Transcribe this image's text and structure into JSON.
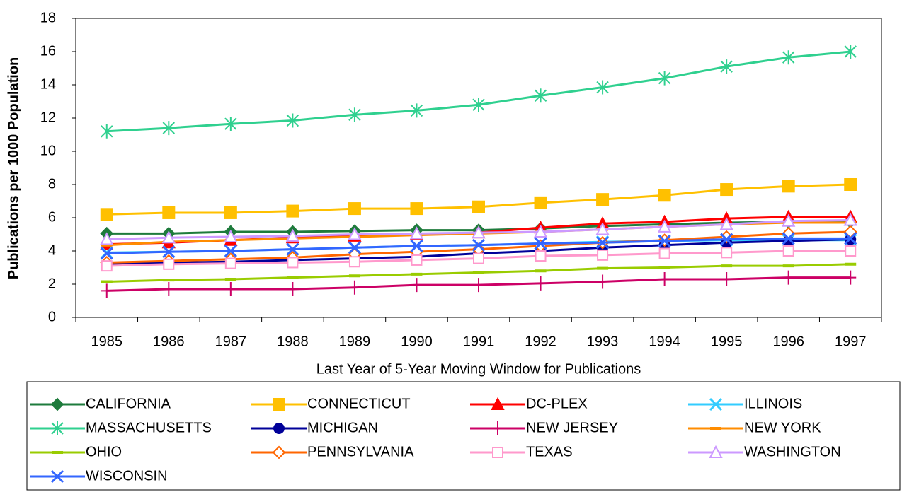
{
  "chart_data": {
    "type": "line",
    "y_label": "Publications per 1000 Population",
    "x_label": "Last Year of 5-Year Moving Window for Publications",
    "categories": [
      "1985",
      "1986",
      "1987",
      "1988",
      "1989",
      "1990",
      "1991",
      "1992",
      "1993",
      "1994",
      "1995",
      "1996",
      "1997"
    ],
    "ylim": [
      0,
      18
    ],
    "yticks": [
      0,
      2,
      4,
      6,
      8,
      10,
      12,
      14,
      16,
      18
    ],
    "series": [
      {
        "name": "CALIFORNIA",
        "color": "#1e7b3c",
        "marker": "diamond",
        "values": [
          5.05,
          5.05,
          5.15,
          5.15,
          5.2,
          5.25,
          5.25,
          5.35,
          5.5,
          5.6,
          5.7,
          5.75,
          5.75
        ]
      },
      {
        "name": "CONNECTICUT",
        "color": "#ffc000",
        "marker": "square",
        "values": [
          6.2,
          6.3,
          6.3,
          6.4,
          6.55,
          6.55,
          6.65,
          6.9,
          7.1,
          7.35,
          7.7,
          7.9,
          8.0
        ]
      },
      {
        "name": "DC-PLEX",
        "color": "#ff0000",
        "marker": "triangle",
        "values": [
          4.4,
          4.5,
          4.65,
          4.8,
          4.9,
          5.0,
          5.1,
          5.4,
          5.65,
          5.75,
          5.95,
          6.05,
          6.05
        ]
      },
      {
        "name": "ILLINOIS",
        "color": "#33ccff",
        "marker": "x",
        "values": [
          3.9,
          3.95,
          4.0,
          4.1,
          4.2,
          4.3,
          4.35,
          4.45,
          4.55,
          4.6,
          4.65,
          4.65,
          4.65
        ]
      },
      {
        "name": "MASSACHUSETTS",
        "color": "#2fd08f",
        "marker": "asterisk",
        "values": [
          11.2,
          11.4,
          11.65,
          11.85,
          12.2,
          12.45,
          12.8,
          13.35,
          13.85,
          14.4,
          15.1,
          15.65,
          16.0
        ]
      },
      {
        "name": "MICHIGAN",
        "color": "#000099",
        "marker": "circle",
        "values": [
          3.2,
          3.3,
          3.35,
          3.45,
          3.55,
          3.65,
          3.85,
          4.0,
          4.2,
          4.35,
          4.5,
          4.6,
          4.7
        ]
      },
      {
        "name": "NEW JERSEY",
        "color": "#cc0066",
        "marker": "plus",
        "values": [
          1.6,
          1.7,
          1.7,
          1.7,
          1.8,
          1.95,
          1.95,
          2.05,
          2.15,
          2.3,
          2.3,
          2.4,
          2.4
        ]
      },
      {
        "name": "NEW YORK",
        "color": "#ff8c00",
        "marker": "dash",
        "values": [
          4.35,
          4.55,
          4.65,
          4.75,
          4.85,
          4.95,
          5.05,
          5.15,
          5.3,
          5.45,
          5.6,
          5.7,
          5.7
        ]
      },
      {
        "name": "OHIO",
        "color": "#99cc00",
        "marker": "dash",
        "values": [
          2.15,
          2.25,
          2.3,
          2.4,
          2.5,
          2.6,
          2.7,
          2.8,
          2.95,
          3.0,
          3.1,
          3.1,
          3.2
        ]
      },
      {
        "name": "PENNSYLVANIA",
        "color": "#ff6600",
        "marker": "diamond-open",
        "values": [
          3.3,
          3.4,
          3.5,
          3.6,
          3.8,
          3.95,
          4.1,
          4.3,
          4.5,
          4.65,
          4.85,
          5.05,
          5.15
        ]
      },
      {
        "name": "TEXAS",
        "color": "#ff99cc",
        "marker": "square-open",
        "values": [
          3.1,
          3.2,
          3.25,
          3.3,
          3.35,
          3.45,
          3.55,
          3.7,
          3.75,
          3.85,
          3.9,
          4.0,
          4.0
        ]
      },
      {
        "name": "WASHINGTON",
        "color": "#cc99ff",
        "marker": "triangle-open",
        "values": [
          4.7,
          4.8,
          4.85,
          4.9,
          5.0,
          5.05,
          5.1,
          5.15,
          5.3,
          5.45,
          5.6,
          5.8,
          5.85
        ]
      },
      {
        "name": "WISCONSIN",
        "color": "#3366ff",
        "marker": "x",
        "values": [
          3.85,
          3.95,
          4.0,
          4.1,
          4.2,
          4.3,
          4.35,
          4.45,
          4.5,
          4.6,
          4.7,
          4.75,
          4.75
        ]
      }
    ]
  }
}
